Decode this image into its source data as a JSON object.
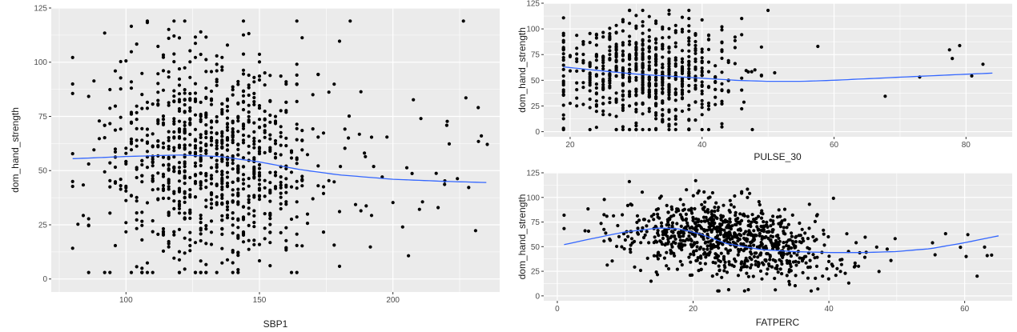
{
  "colors": {
    "panel": "#ebebeb",
    "grid_major": "#ffffff",
    "point": "#000000",
    "smooth": "#3366ff",
    "tick_text": "#4d4d4d",
    "axis_label": "#1a1a1a"
  },
  "chart_data": [
    {
      "type": "scatter",
      "title": "",
      "xlabel": "SBP1",
      "ylabel": "dom_hand_strength",
      "xlim": [
        72,
        240
      ],
      "ylim": [
        -6,
        125
      ],
      "x_ticks": [
        100,
        150,
        200
      ],
      "y_ticks": [
        0,
        25,
        50,
        75,
        100,
        125
      ],
      "grid": true,
      "legend": "none",
      "point_count": 1000,
      "x_range_of_points": [
        80,
        236
      ],
      "y_range_of_points": [
        3,
        119
      ],
      "smooth_line": {
        "x": [
          80,
          100,
          120,
          135,
          150,
          165,
          180,
          200,
          220,
          235
        ],
        "y": [
          55.5,
          56.5,
          57.2,
          56.5,
          54,
          50.5,
          48,
          46,
          45,
          44.5
        ]
      }
    },
    {
      "type": "scatter",
      "title": "",
      "xlabel": "PULSE_30",
      "ylabel": "dom_hand_strength",
      "xlim": [
        16,
        87
      ],
      "ylim": [
        -5,
        125
      ],
      "x_ticks": [
        20,
        40,
        60,
        80
      ],
      "y_ticks": [
        0,
        25,
        50,
        75,
        100,
        125
      ],
      "grid": true,
      "legend": "none",
      "point_count": 700,
      "x_range_of_points": [
        19,
        84
      ],
      "y_range_of_points": [
        2,
        118
      ],
      "smooth_line": {
        "x": [
          19,
          25,
          30,
          35,
          40,
          45,
          50,
          55,
          60,
          70,
          84
        ],
        "y": [
          63,
          59,
          56,
          54,
          52,
          50,
          49,
          49,
          50,
          53,
          57
        ]
      }
    },
    {
      "type": "scatter",
      "title": "",
      "xlabel": "FATPERC",
      "ylabel": "dom_hand_strength",
      "xlim": [
        -2,
        67
      ],
      "ylim": [
        -5,
        125
      ],
      "x_ticks": [
        0,
        20,
        40,
        60
      ],
      "y_ticks": [
        0,
        25,
        50,
        75,
        100,
        125
      ],
      "grid": true,
      "legend": "none",
      "point_count": 900,
      "x_range_of_points": [
        1,
        65
      ],
      "y_range_of_points": [
        5,
        118
      ],
      "smooth_line": {
        "x": [
          1,
          5,
          10,
          15,
          18,
          21,
          25,
          30,
          35,
          40,
          45,
          50,
          55,
          60,
          65
        ],
        "y": [
          52,
          58,
          65,
          69,
          68,
          63,
          53,
          47,
          45,
          44,
          44,
          45,
          48,
          54,
          61
        ]
      }
    }
  ]
}
